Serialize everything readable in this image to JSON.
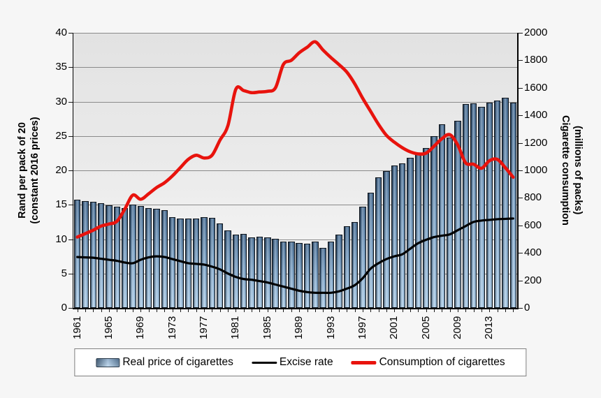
{
  "figure": {
    "left_axis_title_line1": "Rand per pack of 20",
    "left_axis_title_line2": "(constant 2016 prices)",
    "right_axis_title_line1": "Cigarette consumption",
    "right_axis_title_line2": "(millions of packs)"
  },
  "legend": {
    "items": [
      {
        "label": "Real price of cigarettes",
        "type": "bar-swatch"
      },
      {
        "label": "Excise rate",
        "type": "line-swatch"
      },
      {
        "label": "Consumption of cigarettes",
        "type": "line-swatch"
      }
    ]
  },
  "colors": {
    "bar_fill": "#9dc3e6",
    "bar_border": "#10161d",
    "excise_line": "#000000",
    "consumption_line": "#e8130d",
    "gridline": "#8a8a8a",
    "page_bg": "#f6f6f6",
    "legend_border": "#7f7f7f"
  },
  "chart_data": {
    "type": "combo (bar + 2 lines)",
    "x": [
      1961,
      1962,
      1963,
      1964,
      1965,
      1966,
      1967,
      1968,
      1969,
      1970,
      1971,
      1972,
      1973,
      1974,
      1975,
      1976,
      1977,
      1978,
      1979,
      1980,
      1981,
      1982,
      1983,
      1984,
      1985,
      1986,
      1987,
      1988,
      1989,
      1990,
      1991,
      1992,
      1993,
      1994,
      1995,
      1996,
      1997,
      1998,
      1999,
      2000,
      2001,
      2002,
      2003,
      2004,
      2005,
      2006,
      2007,
      2008,
      2009,
      2010,
      2011,
      2012,
      2013,
      2014,
      2015,
      2016
    ],
    "x_tick_labels": [
      "1961",
      "1965",
      "1969",
      "1973",
      "1977",
      "1981",
      "1985",
      "1989",
      "1993",
      "1997",
      "2001",
      "2005",
      "2009",
      "2013"
    ],
    "left_axis": {
      "title": "Rand per pack of 20 (constant 2016 prices)",
      "min": 0,
      "max": 40,
      "step": 5,
      "ticks": [
        "0",
        "5",
        "10",
        "15",
        "20",
        "25",
        "30",
        "35",
        "40"
      ]
    },
    "right_axis": {
      "title": "Cigarette consumption (millions of packs)",
      "min": 0,
      "max": 2000,
      "step": 200,
      "ticks": [
        "0",
        "200",
        "400",
        "600",
        "800",
        "1000",
        "1200",
        "1400",
        "1600",
        "1800",
        "2000"
      ]
    },
    "grid": "horizontal gridlines every 5 units (left axis)",
    "legend_position": "bottom center, boxed",
    "series": [
      {
        "name": "Real price of cigarettes",
        "type": "bar",
        "axis": "left",
        "values": [
          15.7,
          15.5,
          15.4,
          15.2,
          14.9,
          14.7,
          14.5,
          15.0,
          14.8,
          14.5,
          14.4,
          14.2,
          13.2,
          13.0,
          13.0,
          13.0,
          13.2,
          13.1,
          12.3,
          11.3,
          10.7,
          10.8,
          10.3,
          10.4,
          10.3,
          10.1,
          9.6,
          9.6,
          9.4,
          9.3,
          9.6,
          8.7,
          9.6,
          10.7,
          11.9,
          12.5,
          14.7,
          16.8,
          19.0,
          19.9,
          20.7,
          21.0,
          21.8,
          22.3,
          23.3,
          25.0,
          26.7,
          24.8,
          27.2,
          29.6,
          29.7,
          29.2,
          29.8,
          30.2,
          30.6,
          29.8
        ]
      },
      {
        "name": "Excise rate",
        "type": "line",
        "axis": "left",
        "color": "#000000",
        "values": [
          7.4,
          7.35,
          7.3,
          7.15,
          7.0,
          6.85,
          6.6,
          6.5,
          7.0,
          7.35,
          7.5,
          7.4,
          7.1,
          6.8,
          6.5,
          6.4,
          6.3,
          6.0,
          5.6,
          5.0,
          4.5,
          4.2,
          4.1,
          3.9,
          3.7,
          3.4,
          3.1,
          2.8,
          2.5,
          2.3,
          2.2,
          2.2,
          2.2,
          2.4,
          2.8,
          3.3,
          4.3,
          5.7,
          6.5,
          7.1,
          7.5,
          7.8,
          8.6,
          9.4,
          9.9,
          10.3,
          10.5,
          10.7,
          11.3,
          11.9,
          12.5,
          12.7,
          12.8,
          12.9,
          12.95,
          13.0
        ]
      },
      {
        "name": "Consumption of cigarettes",
        "type": "line",
        "axis": "right",
        "color": "#e8130d",
        "values": [
          515,
          540,
          565,
          595,
          610,
          630,
          720,
          820,
          790,
          830,
          875,
          910,
          960,
          1020,
          1080,
          1110,
          1090,
          1110,
          1220,
          1325,
          1590,
          1580,
          1565,
          1570,
          1575,
          1600,
          1770,
          1800,
          1855,
          1895,
          1935,
          1875,
          1820,
          1770,
          1715,
          1630,
          1525,
          1430,
          1335,
          1255,
          1205,
          1165,
          1135,
          1120,
          1125,
          1175,
          1230,
          1260,
          1185,
          1055,
          1045,
          1015,
          1070,
          1080,
          1020,
          950
        ]
      }
    ]
  }
}
